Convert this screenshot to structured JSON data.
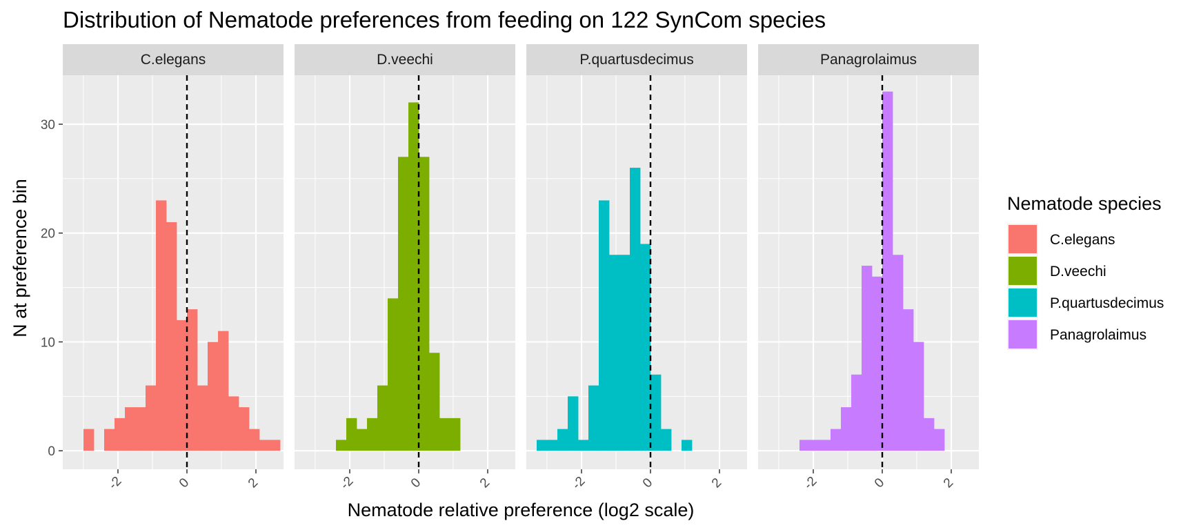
{
  "chart_data": {
    "type": "bar",
    "subtype": "faceted-histogram",
    "title": "Distribution of Nematode preferences from feeding on 122 SynCom species",
    "xlabel": "Nematode relative preference (log2 scale)",
    "ylabel": "N at preference bin",
    "xlim": [
      -3.6,
      2.8
    ],
    "ylim": [
      -1.7,
      34.5
    ],
    "x_ticks": [
      -2,
      0,
      2
    ],
    "x_tick_labels": [
      "-2",
      "0",
      "2"
    ],
    "y_ticks": [
      0,
      10,
      20,
      30
    ],
    "y_tick_labels": [
      "0",
      "10",
      "20",
      "30"
    ],
    "bin_width": 0.3,
    "reference_line_x": 0,
    "grid": true,
    "legend": {
      "title": "Nematode species",
      "placement": "right"
    },
    "series": [
      {
        "name": "C.elegans",
        "color": "#F8766D",
        "bins": [
          {
            "x0": -3.0,
            "count": 2
          },
          {
            "x0": -2.7,
            "count": 0
          },
          {
            "x0": -2.4,
            "count": 2
          },
          {
            "x0": -2.1,
            "count": 3
          },
          {
            "x0": -1.8,
            "count": 4
          },
          {
            "x0": -1.5,
            "count": 4
          },
          {
            "x0": -1.2,
            "count": 6
          },
          {
            "x0": -0.9,
            "count": 23
          },
          {
            "x0": -0.6,
            "count": 21
          },
          {
            "x0": -0.3,
            "count": 12
          },
          {
            "x0": 0.0,
            "count": 13
          },
          {
            "x0": 0.3,
            "count": 6
          },
          {
            "x0": 0.6,
            "count": 10
          },
          {
            "x0": 0.9,
            "count": 11
          },
          {
            "x0": 1.2,
            "count": 5
          },
          {
            "x0": 1.5,
            "count": 4
          },
          {
            "x0": 1.8,
            "count": 2
          },
          {
            "x0": 2.1,
            "count": 1
          },
          {
            "x0": 2.4,
            "count": 1
          }
        ]
      },
      {
        "name": "D.veechi",
        "color": "#7CAE00",
        "bins": [
          {
            "x0": -2.4,
            "count": 1
          },
          {
            "x0": -2.1,
            "count": 3
          },
          {
            "x0": -1.8,
            "count": 2
          },
          {
            "x0": -1.5,
            "count": 3
          },
          {
            "x0": -1.2,
            "count": 6
          },
          {
            "x0": -0.9,
            "count": 14
          },
          {
            "x0": -0.6,
            "count": 27
          },
          {
            "x0": -0.3,
            "count": 32
          },
          {
            "x0": 0.0,
            "count": 27
          },
          {
            "x0": 0.3,
            "count": 9
          },
          {
            "x0": 0.6,
            "count": 3
          },
          {
            "x0": 0.9,
            "count": 3
          }
        ]
      },
      {
        "name": "P.quartusdecimus",
        "color": "#00BFC4",
        "bins": [
          {
            "x0": -3.3,
            "count": 1
          },
          {
            "x0": -3.0,
            "count": 1
          },
          {
            "x0": -2.7,
            "count": 2
          },
          {
            "x0": -2.4,
            "count": 5
          },
          {
            "x0": -2.1,
            "count": 1
          },
          {
            "x0": -1.8,
            "count": 6
          },
          {
            "x0": -1.5,
            "count": 23
          },
          {
            "x0": -1.2,
            "count": 18
          },
          {
            "x0": -0.9,
            "count": 18
          },
          {
            "x0": -0.6,
            "count": 26
          },
          {
            "x0": -0.3,
            "count": 19
          },
          {
            "x0": 0.0,
            "count": 7
          },
          {
            "x0": 0.3,
            "count": 2
          },
          {
            "x0": 0.6,
            "count": 0
          },
          {
            "x0": 0.9,
            "count": 1
          }
        ]
      },
      {
        "name": "Panagrolaimus",
        "color": "#C77CFF",
        "bins": [
          {
            "x0": -2.4,
            "count": 1
          },
          {
            "x0": -2.1,
            "count": 1
          },
          {
            "x0": -1.8,
            "count": 1
          },
          {
            "x0": -1.5,
            "count": 2
          },
          {
            "x0": -1.2,
            "count": 4
          },
          {
            "x0": -0.9,
            "count": 7
          },
          {
            "x0": -0.6,
            "count": 17
          },
          {
            "x0": -0.3,
            "count": 16
          },
          {
            "x0": 0.0,
            "count": 33
          },
          {
            "x0": 0.3,
            "count": 18
          },
          {
            "x0": 0.6,
            "count": 13
          },
          {
            "x0": 0.9,
            "count": 10
          },
          {
            "x0": 1.2,
            "count": 3
          },
          {
            "x0": 1.5,
            "count": 2
          }
        ]
      }
    ]
  }
}
